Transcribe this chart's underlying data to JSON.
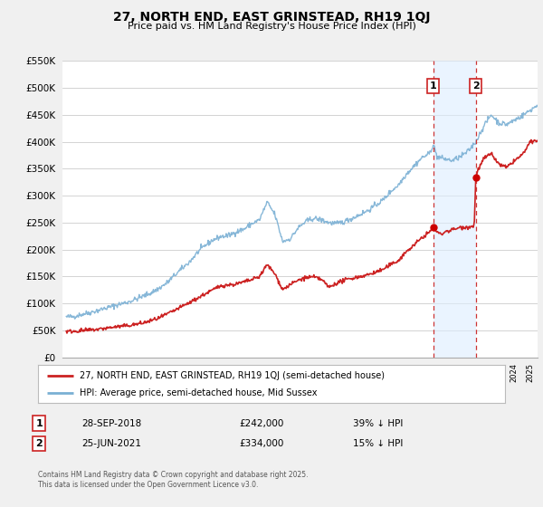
{
  "title": "27, NORTH END, EAST GRINSTEAD, RH19 1QJ",
  "subtitle": "Price paid vs. HM Land Registry's House Price Index (HPI)",
  "background_color": "#f0f0f0",
  "plot_bg_color": "#ffffff",
  "grid_color": "#cccccc",
  "hpi_color": "#7ab0d4",
  "hpi_fill_color": "#c8dff0",
  "price_color": "#cc2222",
  "marker_color": "#cc0000",
  "dashed_line_color": "#cc3333",
  "shade_color": "#ddeeff",
  "ylim": [
    0,
    550000
  ],
  "yticks": [
    0,
    50000,
    100000,
    150000,
    200000,
    250000,
    300000,
    350000,
    400000,
    450000,
    500000,
    550000
  ],
  "xmin": 1994.75,
  "xmax": 2025.5,
  "sale1_x": 2018.75,
  "sale1_y": 242000,
  "sale1_label": "1",
  "sale1_date": "28-SEP-2018",
  "sale1_price": "£242,000",
  "sale1_hpi": "39% ↓ HPI",
  "sale2_x": 2021.5,
  "sale2_y": 334000,
  "sale2_label": "2",
  "sale2_date": "25-JUN-2021",
  "sale2_price": "£334,000",
  "sale2_hpi": "15% ↓ HPI",
  "legend_line1": "27, NORTH END, EAST GRINSTEAD, RH19 1QJ (semi-detached house)",
  "legend_line2": "HPI: Average price, semi-detached house, Mid Sussex",
  "footnote1": "Contains HM Land Registry data © Crown copyright and database right 2025.",
  "footnote2": "This data is licensed under the Open Government Licence v3.0."
}
